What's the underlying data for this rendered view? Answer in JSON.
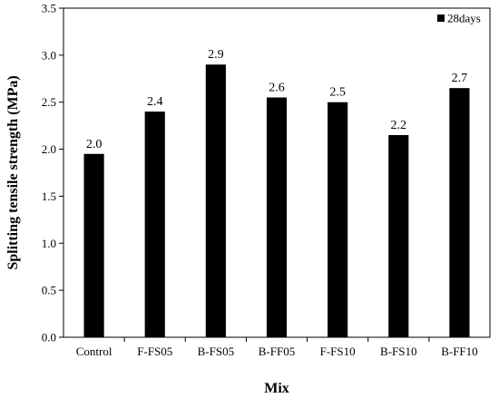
{
  "chart_data": {
    "type": "bar",
    "categories": [
      "Control",
      "F-FS05",
      "B-FS05",
      "B-FF05",
      "F-FS10",
      "B-FS10",
      "B-FF10"
    ],
    "series": [
      {
        "name": "28days",
        "values": [
          1.95,
          2.4,
          2.9,
          2.55,
          2.5,
          2.15,
          2.65
        ],
        "color": "#000000"
      }
    ],
    "data_labels": [
      "2.0",
      "2.4",
      "2.9",
      "2.6",
      "2.5",
      "2.2",
      "2.7"
    ],
    "xlabel": "Mix",
    "ylabel": "Splitting tensile strength (MPa)",
    "ylim": [
      0,
      3.5
    ],
    "yticks": [
      "0.0",
      "0.5",
      "1.0",
      "1.5",
      "2.0",
      "2.5",
      "3.0",
      "3.5"
    ],
    "grid": false,
    "legend_position": "top-right"
  }
}
